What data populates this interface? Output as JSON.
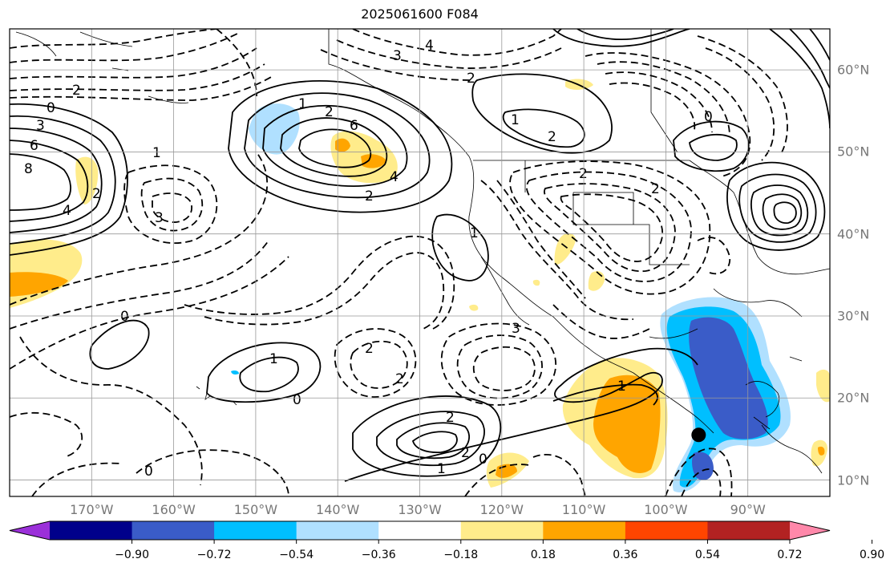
{
  "title": "2025061600 F084",
  "map": {
    "lon_labels": [
      {
        "lon": -170,
        "text": "170°W"
      },
      {
        "lon": -160,
        "text": "160°W"
      },
      {
        "lon": -150,
        "text": "150°W"
      },
      {
        "lon": -140,
        "text": "140°W"
      },
      {
        "lon": -130,
        "text": "130°W"
      },
      {
        "lon": -120,
        "text": "120°W"
      },
      {
        "lon": -110,
        "text": "110°W"
      },
      {
        "lon": -100,
        "text": "100°W"
      },
      {
        "lon": -90,
        "text": "90°W"
      }
    ],
    "lat_labels": [
      {
        "lat": 60,
        "text": "60°N"
      },
      {
        "lat": 50,
        "text": "50°N"
      },
      {
        "lat": 40,
        "text": "40°N"
      },
      {
        "lat": 30,
        "text": "30°N"
      },
      {
        "lat": 20,
        "text": "20°N"
      },
      {
        "lat": 10,
        "text": "10°N"
      }
    ],
    "lon_range": [
      -180,
      -80
    ],
    "lat_range": [
      8,
      65
    ],
    "marker": {
      "lon": -96,
      "lat": 15.5
    },
    "contour_labels": [
      "0",
      "2",
      "3",
      "4",
      "6",
      "8",
      "1",
      "2",
      "3",
      "4",
      "6",
      "2",
      "2",
      "1",
      "2",
      "2",
      "4",
      "1",
      "3",
      "0",
      "2",
      "2",
      "1",
      "2",
      "1",
      "0",
      "0",
      "2",
      "3",
      "1",
      "2",
      "1",
      "0",
      "2",
      "0"
    ]
  },
  "colorbar": {
    "colors": [
      "#9b30d9",
      "#00008b",
      "#3a5cc8",
      "#00bfff",
      "#b0e0ff",
      "#ffffff",
      "#ffec8b",
      "#ffa500",
      "#ff4500",
      "#b22222",
      "#ff88aa"
    ],
    "ticks": [
      "−0.90",
      "−0.72",
      "−0.54",
      "−0.36",
      "−0.18",
      "0.18",
      "0.36",
      "0.54",
      "0.72",
      "0.90"
    ]
  }
}
